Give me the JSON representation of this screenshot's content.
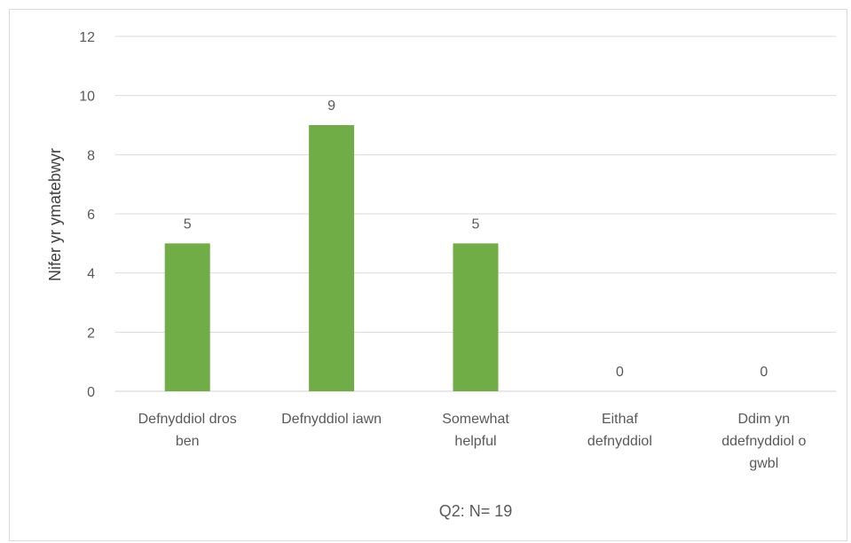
{
  "chart_data": {
    "type": "bar",
    "categories": [
      [
        "Defnyddiol dros",
        "ben"
      ],
      [
        "Defnyddiol iawn"
      ],
      [
        "Somewhat",
        "helpful"
      ],
      [
        "Eithaf",
        "defnyddiol"
      ],
      [
        "Ddim yn",
        "ddefnyddiol o",
        "gwbl"
      ]
    ],
    "values": [
      5,
      9,
      5,
      0,
      0
    ],
    "title": "",
    "xlabel": "Q2: N= 19",
    "ylabel": "Nifer yr ymatebwyr",
    "ylim": [
      0,
      12
    ],
    "yticks": [
      "0",
      "2",
      "4",
      "6",
      "8",
      "10",
      "12"
    ],
    "grid": true,
    "data_labels": true,
    "bar_color": "#70ad47",
    "grid_color": "#d9d9d9"
  }
}
